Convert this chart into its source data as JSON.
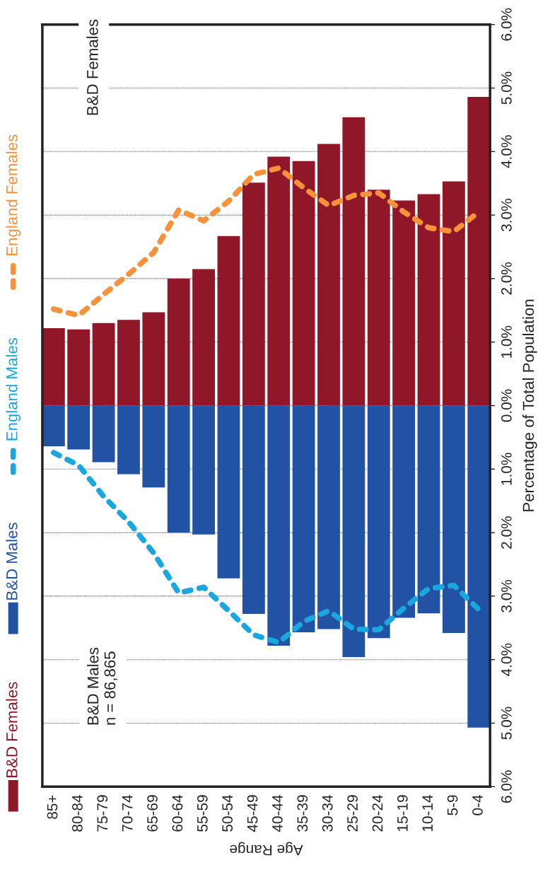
{
  "chart_data": {
    "xlabel": "Age Range",
    "ylabel": "Percentage of Total Population",
    "categories": [
      "85+",
      "80-84",
      "75-79",
      "70-74",
      "65-69",
      "60-64",
      "55-59",
      "50-54",
      "45-49",
      "40-44",
      "35-39",
      "30-34",
      "25-29",
      "20-24",
      "15-19",
      "10-14",
      "5-9",
      "0-4"
    ],
    "series": [
      {
        "name": "B&D Females",
        "type": "bar",
        "color": "#8f1728",
        "values": [
          1.22,
          1.2,
          1.3,
          1.35,
          1.47,
          2.0,
          2.15,
          2.67,
          3.51,
          3.92,
          3.85,
          4.12,
          4.54,
          3.4,
          3.23,
          3.33,
          3.53,
          4.86
        ]
      },
      {
        "name": "B&D Males",
        "type": "bar",
        "color": "#2152a3",
        "values": [
          -0.64,
          -0.69,
          -0.89,
          -1.08,
          -1.29,
          -2.0,
          -2.03,
          -2.72,
          -3.28,
          -3.78,
          -3.57,
          -3.52,
          -3.96,
          -3.66,
          -3.34,
          -3.27,
          -3.58,
          -5.07
        ]
      },
      {
        "name": "England Males",
        "type": "line",
        "color": "#1aa7e0",
        "line_style": "dashed",
        "values": [
          -0.74,
          -0.94,
          -1.43,
          -1.83,
          -2.32,
          -2.95,
          -2.86,
          -3.23,
          -3.61,
          -3.73,
          -3.4,
          -3.23,
          -3.52,
          -3.53,
          -3.19,
          -2.88,
          -2.83,
          -3.21
        ]
      },
      {
        "name": "England Females",
        "type": "line",
        "color": "#f7923a",
        "line_style": "dashed",
        "values": [
          1.52,
          1.42,
          1.75,
          2.07,
          2.41,
          3.08,
          2.91,
          3.22,
          3.64,
          3.74,
          3.43,
          3.15,
          3.31,
          3.35,
          3.05,
          2.8,
          2.74,
          3.05
        ]
      }
    ],
    "ylim": [
      -6,
      6
    ],
    "yticks": [
      {
        "value": -6,
        "label": "6.0%"
      },
      {
        "value": -5,
        "label": "5.0%"
      },
      {
        "value": -4,
        "label": "4.0%"
      },
      {
        "value": -3,
        "label": "3.0%"
      },
      {
        "value": -2,
        "label": "2.0%"
      },
      {
        "value": -1,
        "label": "1.0%"
      },
      {
        "value": 0,
        "label": "0.0%"
      },
      {
        "value": 1,
        "label": "1.0%"
      },
      {
        "value": 2,
        "label": "2.0%"
      },
      {
        "value": 3,
        "label": "3.0%"
      },
      {
        "value": 4,
        "label": "4.0%"
      },
      {
        "value": 5,
        "label": "5.0%"
      },
      {
        "value": 6,
        "label": "6.0%"
      }
    ],
    "annotations": [
      "B&D Females",
      "B&D Males\nn = 86,865"
    ],
    "type": "bar",
    "stacked": true,
    "grid": "y",
    "legend": "left",
    "marker": "none"
  }
}
